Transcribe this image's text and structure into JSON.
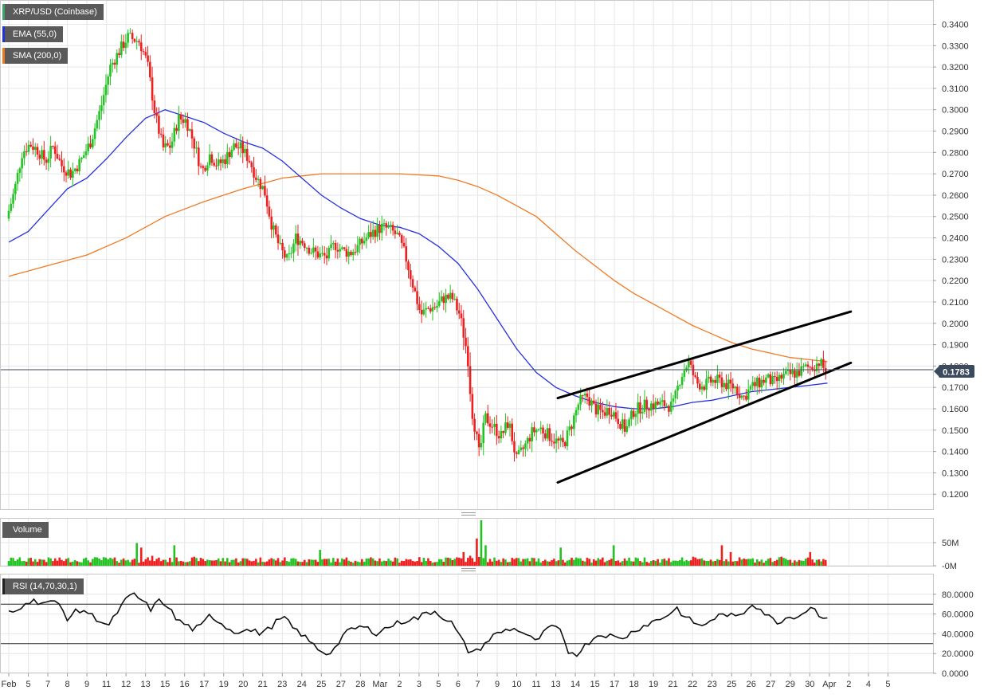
{
  "legends": {
    "main": "XRP/USD (Coinbase)",
    "ema": "EMA (55,0)",
    "sma": "SMA (200,0)",
    "volume": "Volume",
    "rsi": "RSI (14,70,30,1)"
  },
  "colors": {
    "up": "#22c322",
    "down": "#ee1f1f",
    "ema": "#2531e0",
    "sma": "#f07a22",
    "trend": "#000000",
    "grid": "#e6e6e6",
    "price_tag": "#3b4a5e",
    "legend_bg": "#5a5a5a",
    "main_swatch": "#3fa46b"
  },
  "chart_data": {
    "type": "candlestick",
    "symbol": "XRP/USD (Coinbase)",
    "price_axis": {
      "ticks": [
        "0.3400",
        "0.3300",
        "0.3200",
        "0.3100",
        "0.3000",
        "0.2900",
        "0.2800",
        "0.2700",
        "0.2600",
        "0.2500",
        "0.2400",
        "0.2300",
        "0.2200",
        "0.2100",
        "0.2000",
        "0.1900",
        "0.1800",
        "0.1700",
        "0.1600",
        "0.1500",
        "0.1400",
        "0.1300",
        "0.1200"
      ],
      "range": [
        0.113,
        0.351
      ]
    },
    "current_price": "0.1783",
    "x_ticks": [
      "Feb",
      "5",
      "7",
      "8",
      "9",
      "11",
      "12",
      "13",
      "15",
      "16",
      "17",
      "19",
      "20",
      "21",
      "23",
      "24",
      "25",
      "27",
      "28",
      "Mar",
      "2",
      "3",
      "5",
      "6",
      "7",
      "9",
      "10",
      "11",
      "13",
      "14",
      "15",
      "17",
      "18",
      "19",
      "21",
      "22",
      "23",
      "25",
      "26",
      "27",
      "29",
      "30",
      "Apr",
      "2",
      "4",
      "5"
    ],
    "price_path": [
      [
        0.0,
        0.249
      ],
      [
        0.4,
        0.262
      ],
      [
        0.8,
        0.28
      ],
      [
        1.2,
        0.284
      ],
      [
        1.6,
        0.281
      ],
      [
        2.0,
        0.276
      ],
      [
        2.4,
        0.283
      ],
      [
        2.8,
        0.274
      ],
      [
        3.3,
        0.27
      ],
      [
        3.8,
        0.276
      ],
      [
        4.3,
        0.285
      ],
      [
        4.8,
        0.3
      ],
      [
        5.3,
        0.32
      ],
      [
        5.8,
        0.328
      ],
      [
        6.2,
        0.334
      ],
      [
        6.8,
        0.332
      ],
      [
        7.2,
        0.322
      ],
      [
        7.6,
        0.298
      ],
      [
        8.0,
        0.282
      ],
      [
        8.4,
        0.283
      ],
      [
        8.8,
        0.296
      ],
      [
        9.2,
        0.295
      ],
      [
        9.6,
        0.284
      ],
      [
        10.0,
        0.271
      ],
      [
        10.4,
        0.279
      ],
      [
        10.8,
        0.274
      ],
      [
        11.2,
        0.277
      ],
      [
        11.6,
        0.283
      ],
      [
        12.0,
        0.282
      ],
      [
        12.4,
        0.277
      ],
      [
        12.8,
        0.268
      ],
      [
        13.2,
        0.262
      ],
      [
        13.6,
        0.245
      ],
      [
        14.0,
        0.235
      ],
      [
        14.4,
        0.229
      ],
      [
        14.8,
        0.24
      ],
      [
        15.2,
        0.238
      ],
      [
        15.6,
        0.234
      ],
      [
        16.0,
        0.232
      ],
      [
        16.4,
        0.231
      ],
      [
        16.8,
        0.237
      ],
      [
        17.2,
        0.234
      ],
      [
        17.6,
        0.233
      ],
      [
        18.0,
        0.236
      ],
      [
        18.4,
        0.24
      ],
      [
        18.8,
        0.243
      ],
      [
        19.2,
        0.245
      ],
      [
        19.6,
        0.244
      ],
      [
        20.0,
        0.241
      ],
      [
        20.4,
        0.232
      ],
      [
        20.8,
        0.218
      ],
      [
        21.2,
        0.204
      ],
      [
        21.6,
        0.207
      ],
      [
        22.0,
        0.208
      ],
      [
        22.4,
        0.212
      ],
      [
        22.8,
        0.212
      ],
      [
        23.2,
        0.204
      ],
      [
        23.6,
        0.185
      ],
      [
        23.8,
        0.16
      ],
      [
        24.0,
        0.15
      ],
      [
        24.2,
        0.138
      ],
      [
        24.5,
        0.156
      ],
      [
        24.9,
        0.152
      ],
      [
        25.3,
        0.147
      ],
      [
        25.7,
        0.154
      ],
      [
        26.1,
        0.136
      ],
      [
        26.5,
        0.142
      ],
      [
        26.9,
        0.149
      ],
      [
        27.3,
        0.151
      ],
      [
        27.7,
        0.148
      ],
      [
        28.1,
        0.145
      ],
      [
        28.5,
        0.143
      ],
      [
        28.9,
        0.152
      ],
      [
        29.3,
        0.163
      ],
      [
        29.7,
        0.166
      ],
      [
        30.1,
        0.16
      ],
      [
        30.5,
        0.158
      ],
      [
        30.9,
        0.16
      ],
      [
        31.3,
        0.155
      ],
      [
        31.7,
        0.15
      ],
      [
        32.1,
        0.159
      ],
      [
        32.5,
        0.161
      ],
      [
        32.9,
        0.162
      ],
      [
        33.3,
        0.162
      ],
      [
        33.7,
        0.162
      ],
      [
        34.1,
        0.161
      ],
      [
        34.5,
        0.175
      ],
      [
        34.9,
        0.182
      ],
      [
        35.3,
        0.172
      ],
      [
        35.7,
        0.171
      ],
      [
        36.1,
        0.173
      ],
      [
        36.5,
        0.173
      ],
      [
        36.9,
        0.171
      ],
      [
        37.3,
        0.17
      ],
      [
        37.7,
        0.165
      ],
      [
        38.1,
        0.17
      ],
      [
        38.5,
        0.172
      ],
      [
        38.9,
        0.174
      ],
      [
        39.3,
        0.172
      ],
      [
        39.7,
        0.175
      ],
      [
        40.1,
        0.176
      ],
      [
        40.5,
        0.177
      ],
      [
        40.9,
        0.179
      ],
      [
        41.3,
        0.18
      ],
      [
        41.6,
        0.182
      ],
      [
        41.9,
        0.178
      ]
    ],
    "ema_55": [
      [
        0.0,
        0.238
      ],
      [
        1.0,
        0.243
      ],
      [
        2.0,
        0.253
      ],
      [
        3.0,
        0.263
      ],
      [
        4.0,
        0.268
      ],
      [
        5.0,
        0.277
      ],
      [
        6.0,
        0.287
      ],
      [
        7.0,
        0.296
      ],
      [
        8.0,
        0.3
      ],
      [
        9.0,
        0.297
      ],
      [
        10.0,
        0.294
      ],
      [
        11.0,
        0.289
      ],
      [
        12.0,
        0.285
      ],
      [
        13.0,
        0.282
      ],
      [
        14.0,
        0.276
      ],
      [
        15.0,
        0.268
      ],
      [
        16.0,
        0.26
      ],
      [
        17.0,
        0.254
      ],
      [
        18.0,
        0.249
      ],
      [
        19.0,
        0.246
      ],
      [
        20.0,
        0.245
      ],
      [
        21.0,
        0.242
      ],
      [
        22.0,
        0.236
      ],
      [
        23.0,
        0.228
      ],
      [
        24.0,
        0.216
      ],
      [
        25.0,
        0.202
      ],
      [
        26.0,
        0.188
      ],
      [
        27.0,
        0.177
      ],
      [
        28.0,
        0.17
      ],
      [
        29.0,
        0.166
      ],
      [
        30.0,
        0.163
      ],
      [
        31.0,
        0.161
      ],
      [
        32.0,
        0.16
      ],
      [
        33.0,
        0.16
      ],
      [
        34.0,
        0.161
      ],
      [
        35.0,
        0.163
      ],
      [
        36.0,
        0.164
      ],
      [
        37.0,
        0.166
      ],
      [
        38.0,
        0.168
      ],
      [
        39.0,
        0.169
      ],
      [
        40.0,
        0.17
      ],
      [
        41.0,
        0.171
      ],
      [
        41.9,
        0.172
      ]
    ],
    "sma_200": [
      [
        0.0,
        0.222
      ],
      [
        2.0,
        0.227
      ],
      [
        4.0,
        0.232
      ],
      [
        6.0,
        0.24
      ],
      [
        8.0,
        0.25
      ],
      [
        10.0,
        0.257
      ],
      [
        12.0,
        0.263
      ],
      [
        14.0,
        0.268
      ],
      [
        16.0,
        0.27
      ],
      [
        18.0,
        0.27
      ],
      [
        20.0,
        0.27
      ],
      [
        22.0,
        0.269
      ],
      [
        23.0,
        0.267
      ],
      [
        24.0,
        0.264
      ],
      [
        25.0,
        0.26
      ],
      [
        26.0,
        0.255
      ],
      [
        27.0,
        0.25
      ],
      [
        28.0,
        0.242
      ],
      [
        29.0,
        0.234
      ],
      [
        30.0,
        0.227
      ],
      [
        31.0,
        0.22
      ],
      [
        32.0,
        0.214
      ],
      [
        33.0,
        0.209
      ],
      [
        34.0,
        0.204
      ],
      [
        35.0,
        0.199
      ],
      [
        36.0,
        0.195
      ],
      [
        37.0,
        0.191
      ],
      [
        38.0,
        0.188
      ],
      [
        39.0,
        0.186
      ],
      [
        40.0,
        0.184
      ],
      [
        41.0,
        0.183
      ],
      [
        41.9,
        0.182
      ]
    ],
    "trendlines": [
      {
        "name": "upper",
        "from": [
          28.1,
          0.165
        ],
        "to": [
          43.1,
          0.2055
        ]
      },
      {
        "name": "lower",
        "from": [
          28.1,
          0.1255
        ],
        "to": [
          43.1,
          0.1815
        ]
      }
    ],
    "volume": {
      "axis_ticks": [
        "50M",
        "-0M"
      ],
      "spikes": [
        [
          6.5,
          0.5
        ],
        [
          6.8,
          0.4
        ],
        [
          8.5,
          0.45
        ],
        [
          15.9,
          0.35
        ],
        [
          23.3,
          0.3
        ],
        [
          24.0,
          0.6
        ],
        [
          24.2,
          1.0
        ],
        [
          24.4,
          0.45
        ],
        [
          28.2,
          0.4
        ],
        [
          31.0,
          0.45
        ],
        [
          36.5,
          0.45
        ],
        [
          36.9,
          0.3
        ],
        [
          39.6,
          0.2
        ],
        [
          41.0,
          0.3
        ]
      ]
    },
    "rsi": {
      "axis_ticks": [
        "80.0000",
        "60.0000",
        "40.0000",
        "20.0000",
        "0.0000"
      ],
      "levels": [
        70,
        30
      ],
      "range": [
        0,
        100
      ],
      "path": [
        [
          0.0,
          61
        ],
        [
          0.5,
          63
        ],
        [
          1.0,
          73
        ],
        [
          1.5,
          73
        ],
        [
          2.0,
          72
        ],
        [
          2.5,
          72
        ],
        [
          3.0,
          70
        ],
        [
          3.5,
          56
        ],
        [
          4.0,
          62
        ],
        [
          4.5,
          64
        ],
        [
          5.0,
          58
        ],
        [
          5.5,
          53
        ],
        [
          6.0,
          48
        ],
        [
          6.5,
          62
        ],
        [
          7.0,
          74
        ],
        [
          7.5,
          80
        ],
        [
          8.0,
          73
        ],
        [
          8.5,
          65
        ],
        [
          9.0,
          73
        ],
        [
          9.5,
          69
        ],
        [
          10.0,
          55
        ],
        [
          10.5,
          50
        ],
        [
          11.0,
          45
        ],
        [
          11.5,
          47
        ],
        [
          12.0,
          58
        ],
        [
          12.5,
          54
        ],
        [
          13.0,
          47
        ],
        [
          13.5,
          42
        ],
        [
          14.0,
          44
        ],
        [
          14.5,
          43
        ],
        [
          15.0,
          41
        ],
        [
          15.5,
          44
        ],
        [
          16.0,
          52
        ],
        [
          16.5,
          56
        ],
        [
          17.0,
          46
        ],
        [
          17.5,
          40
        ],
        [
          18.0,
          32
        ],
        [
          18.5,
          25
        ],
        [
          19.0,
          20
        ],
        [
          19.5,
          25
        ],
        [
          20.0,
          38
        ],
        [
          20.5,
          44
        ],
        [
          21.0,
          47
        ],
        [
          21.5,
          45
        ],
        [
          22.0,
          41
        ],
        [
          22.5,
          45
        ],
        [
          23.0,
          49
        ],
        [
          23.5,
          52
        ],
        [
          24.0,
          55
        ],
        [
          24.5,
          56
        ],
        [
          25.0,
          61
        ],
        [
          25.5,
          63
        ],
        [
          26.0,
          57
        ],
        [
          26.5,
          51
        ],
        [
          27.0,
          37
        ],
        [
          27.5,
          23
        ],
        [
          28.0,
          22
        ],
        [
          28.5,
          30
        ],
        [
          29.0,
          38
        ],
        [
          29.5,
          42
        ],
        [
          30.0,
          45
        ],
        [
          30.5,
          44
        ],
        [
          31.0,
          39
        ],
        [
          31.5,
          32
        ],
        [
          32.0,
          40
        ],
        [
          32.5,
          48
        ],
        [
          33.0,
          42
        ],
        [
          33.5,
          22
        ],
        [
          34.0,
          20
        ],
        [
          34.5,
          28
        ],
        [
          35.0,
          36
        ],
        [
          35.5,
          40
        ],
        [
          36.0,
          38
        ],
        [
          36.5,
          35
        ],
        [
          37.0,
          38
        ],
        [
          37.5,
          44
        ],
        [
          38.0,
          48
        ],
        [
          38.5,
          52
        ],
        [
          39.0,
          55
        ],
        [
          39.5,
          60
        ],
        [
          40.0,
          66
        ],
        [
          40.5,
          56
        ],
        [
          41.0,
          52
        ],
        [
          41.5,
          47
        ],
        [
          42.0,
          54
        ],
        [
          42.5,
          58
        ],
        [
          43.0,
          60
        ],
        [
          43.5,
          56
        ],
        [
          44.0,
          62
        ],
        [
          44.5,
          71
        ],
        [
          45.0,
          65
        ],
        [
          45.5,
          57
        ],
        [
          46.0,
          52
        ],
        [
          46.5,
          56
        ],
        [
          47.0,
          58
        ],
        [
          47.5,
          60
        ],
        [
          48.0,
          68
        ],
        [
          48.5,
          60
        ],
        [
          49.0,
          56
        ]
      ]
    }
  }
}
